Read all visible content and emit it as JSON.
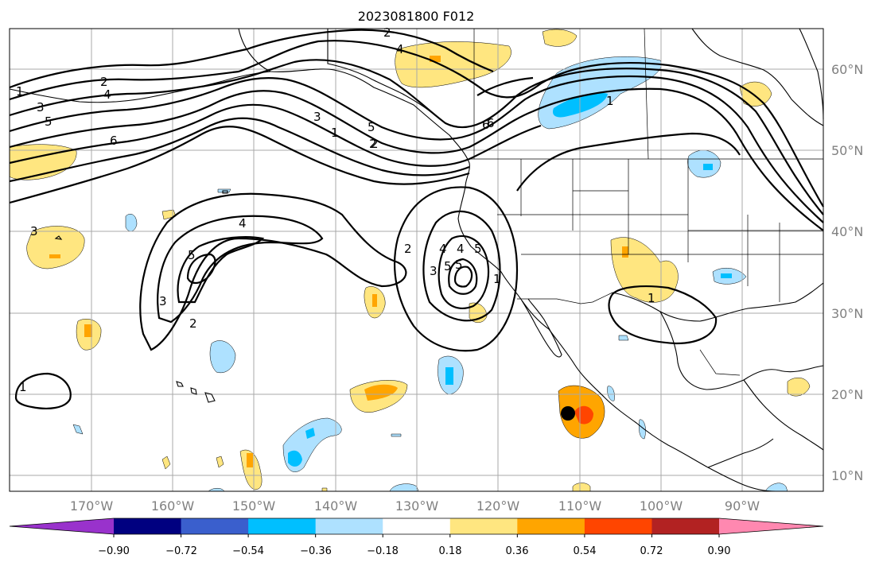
{
  "title": "2023081800 F012",
  "lat_labels": [
    "60°N",
    "50°N",
    "40°N",
    "30°N",
    "20°N",
    "10°N"
  ],
  "lon_labels": [
    "170°W",
    "160°W",
    "150°W",
    "140°W",
    "130°W",
    "120°W",
    "110°W",
    "100°W",
    "90°W"
  ],
  "colorbar": {
    "tick_labels": [
      "−0.90",
      "−0.72",
      "−0.54",
      "−0.36",
      "−0.18",
      "0.18",
      "0.36",
      "0.54",
      "0.72",
      "0.90"
    ],
    "colors": [
      "#9932cc",
      "#000080",
      "#3a5fcd",
      "#00bfff",
      "#aee1ff",
      "#ffffff",
      "#ffe680",
      "#ffa500",
      "#ff4500",
      "#b22222",
      "#ff88b0"
    ],
    "extend": "both"
  },
  "contour_labels": [
    "2",
    "4",
    "1",
    "2",
    "3",
    "5",
    "6",
    "3",
    "5",
    "1",
    "2",
    "6",
    "1",
    "5",
    "4",
    "5",
    "3",
    "2",
    "3",
    "4",
    "5",
    "2",
    "5",
    "4",
    "3",
    "1",
    "1",
    "1",
    "4",
    "6",
    "2"
  ],
  "colors": {
    "contour": "#000000",
    "coast": "#000000",
    "grid": "#a9a9a9",
    "axis_label": "#808080",
    "storm_marker": "#000000"
  }
}
